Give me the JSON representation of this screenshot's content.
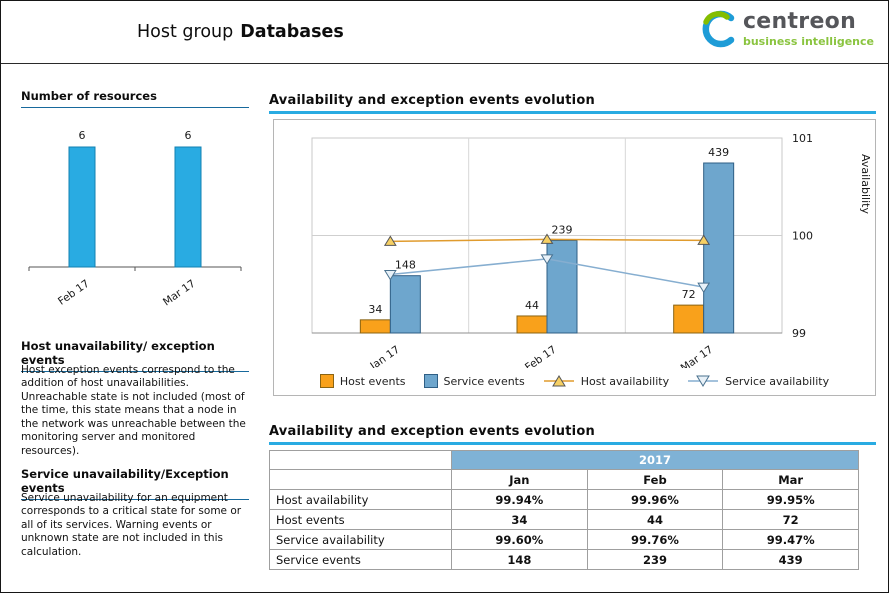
{
  "header": {
    "title_prefix": "Host group",
    "title_name": "Databases",
    "logo_text": "centreon",
    "logo_subtext": "business intelligence"
  },
  "sidebar": {
    "resources_title": "Number of resources",
    "host_section_title": "Host unavailability/ exception events",
    "host_section_text": "Host exception events correspond to the addition of host unavailabilities. Unreachable state is not included (most of the time, this state means that a node in the network was unreachable between the monitoring server and monitored resources).",
    "service_section_title": "Service unavailability/Exception events",
    "service_section_text": "Service unavailability for an equipment corresponds to a critical state for some or all of its services. Warning events or unknown state are not included in this calculation."
  },
  "main": {
    "chart_section_title": "Availability and exception events evolution",
    "table_section_title": "Availability and exception events evolution"
  },
  "chart_data": [
    {
      "type": "bar",
      "title": "Number of resources",
      "categories": [
        "Feb 17",
        "Mar 17"
      ],
      "values": [
        6,
        6
      ],
      "bar_color": "#29abe2",
      "bar_border": "#1280b2"
    },
    {
      "type": "bar",
      "title": "Availability and exception events evolution",
      "categories": [
        "Jan 17",
        "Feb 17",
        "Mar 17"
      ],
      "series": [
        {
          "name": "Host events",
          "kind": "bar",
          "color": "#f9a11b",
          "border": "#8a6413",
          "values": [
            34,
            44,
            72
          ]
        },
        {
          "name": "Service events",
          "kind": "bar",
          "color": "#6ea6cd",
          "border": "#2f5f85",
          "values": [
            148,
            239,
            439
          ]
        },
        {
          "name": "Host availability",
          "kind": "line",
          "color": "#e09b2d",
          "marker": "triangle-up",
          "marker_fill": "#f6d064",
          "marker_stroke": "#555555",
          "values": [
            99.94,
            99.96,
            99.95
          ]
        },
        {
          "name": "Service availability",
          "kind": "line",
          "color": "#86aed0",
          "marker": "triangle-down",
          "marker_fill": "#e8f1f8",
          "marker_stroke": "#4a718e",
          "values": [
            99.6,
            99.76,
            99.47
          ]
        }
      ],
      "y2label": "Availability",
      "y2ticks": [
        99,
        100,
        101
      ],
      "y2lim": [
        99,
        101
      ],
      "legend_position": "bottom",
      "grid": true
    }
  ],
  "table": {
    "year_header": "2017",
    "columns": [
      "Jan",
      "Feb",
      "Mar"
    ],
    "rows": [
      {
        "label": "Host availability",
        "values": [
          "99.94%",
          "99.96%",
          "99.95%"
        ]
      },
      {
        "label": "Host events",
        "values": [
          "34",
          "44",
          "72"
        ]
      },
      {
        "label": "Service availability",
        "values": [
          "99.60%",
          "99.76%",
          "99.47%"
        ]
      },
      {
        "label": "Service events",
        "values": [
          "148",
          "239",
          "439"
        ]
      }
    ]
  }
}
